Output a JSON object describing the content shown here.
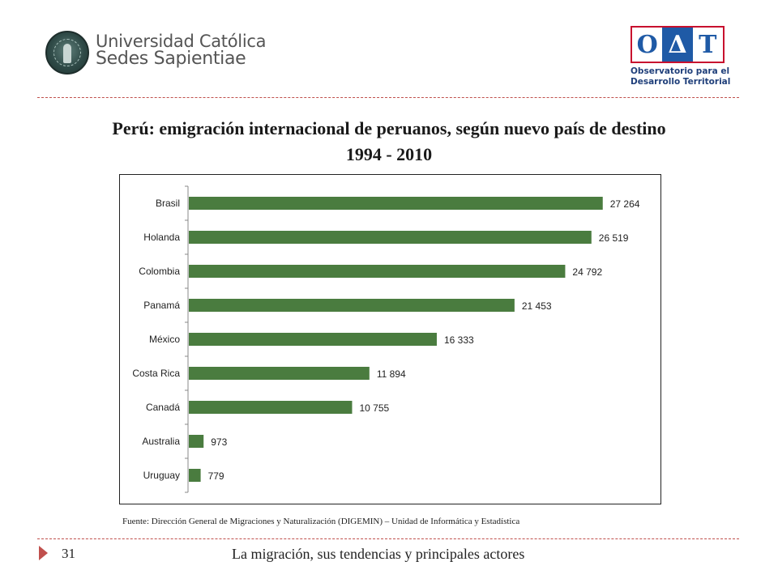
{
  "header": {
    "left_logo": {
      "line1": "Universidad Católica",
      "line2": "Sedes Sapientiae"
    },
    "right_logo": {
      "letters": [
        "O",
        "Δ",
        "T"
      ],
      "line1": "Observatorio para el",
      "line2": "Desarrollo Territorial"
    }
  },
  "title": {
    "line1": "Perú: emigración internacional de peruanos, según nuevo país de destino",
    "line2": "1994 - 2010"
  },
  "chart_data": {
    "type": "bar",
    "orientation": "horizontal",
    "categories": [
      "Brasil",
      "Holanda",
      "Colombia",
      "Panamá",
      "México",
      "Costa Rica",
      "Canadá",
      "Australia",
      "Uruguay"
    ],
    "values": [
      27264,
      26519,
      24792,
      21453,
      16333,
      11894,
      10755,
      973,
      779
    ],
    "value_labels": [
      "27 264",
      "26 519",
      "24 792",
      "21 453",
      "16 333",
      "11 894",
      "10 755",
      "973",
      "779"
    ],
    "xlim": [
      0,
      30000
    ],
    "bar_color": "#4a7c3f",
    "grid": false,
    "legend": "none"
  },
  "source": "Fuente: Dirección General de Migraciones y Naturalización (DIGEMIN) – Unidad de Informática y Estadística",
  "footer": {
    "page_number": "31",
    "text": "La migración, sus tendencias y principales actores"
  },
  "colors": {
    "accent": "#c0504d",
    "bar": "#4a7c3f"
  }
}
